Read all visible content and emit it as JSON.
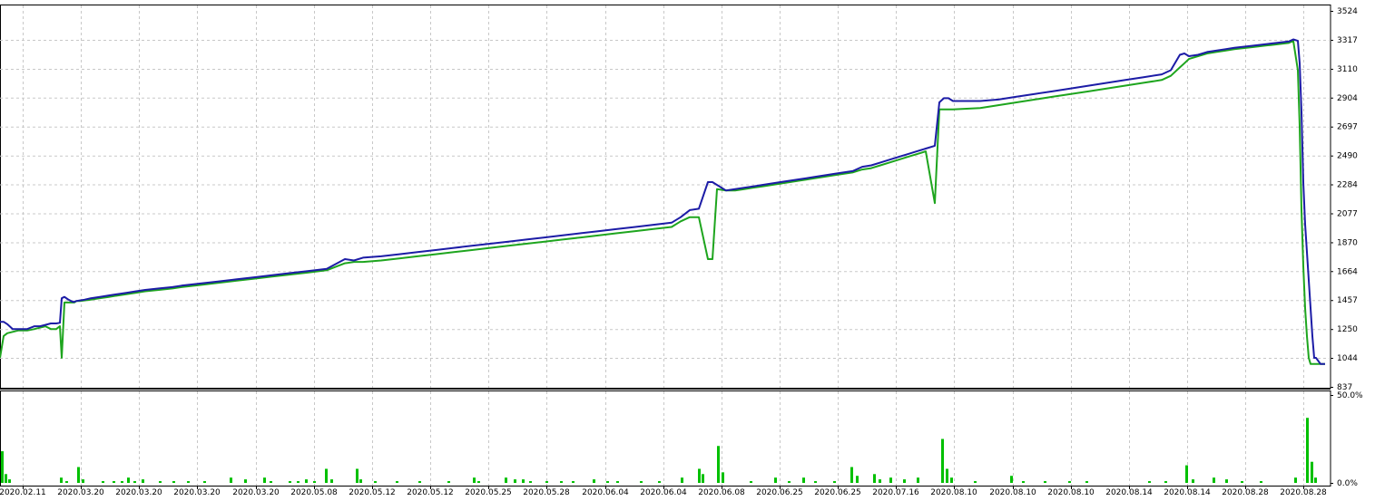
{
  "chart_data": [
    {
      "type": "line",
      "title": "",
      "ylim": [
        837,
        3524
      ],
      "y_ticks": [
        "3524",
        "3317",
        "3110",
        "2904",
        "2697",
        "2490",
        "2284",
        "2077",
        "1870",
        "1664",
        "1457",
        "1250",
        "1044",
        "837"
      ],
      "x_tick_labels": [
        "2020.02.11",
        "2020.03.20",
        "2020.03.20",
        "2020.03.20",
        "2020.03.20",
        "2020.05.08",
        "2020.05.12",
        "2020.05.12",
        "2020.05.25",
        "2020.05.28",
        "2020.06.04",
        "2020.06.04",
        "2020.06.08",
        "2020.06.25",
        "2020.06.25",
        "2020.07.16",
        "2020.08.10",
        "2020.08.10",
        "2020.08.10",
        "2020.08.14",
        "2020.08.14",
        "2020.08.28",
        "2020.08.28"
      ],
      "grid": true,
      "x": [
        0,
        4,
        8,
        14,
        20,
        30,
        38,
        44,
        50,
        56,
        62,
        66,
        68,
        71,
        75,
        80,
        82,
        84,
        88,
        93,
        100,
        110,
        120,
        130,
        140,
        150,
        160,
        175,
        190,
        200,
        220,
        240,
        260,
        280,
        300,
        320,
        340,
        360,
        380,
        390,
        400,
        420,
        440,
        460,
        480,
        500,
        520,
        540,
        560,
        580,
        600,
        620,
        640,
        660,
        680,
        700,
        720,
        740,
        750,
        760,
        770,
        780,
        785,
        790,
        800,
        810,
        820,
        830,
        840,
        860,
        880,
        900,
        920,
        940,
        950,
        960,
        970,
        980,
        990,
        1000,
        1010,
        1020,
        1030,
        1035,
        1040,
        1045,
        1050,
        1080,
        1100,
        1120,
        1140,
        1160,
        1180,
        1200,
        1220,
        1240,
        1260,
        1280,
        1290,
        1300,
        1305,
        1310,
        1320,
        1330,
        1340,
        1350,
        1360,
        1380,
        1400,
        1420,
        1425,
        1430,
        1432,
        1434,
        1436,
        1438,
        1440,
        1442,
        1444,
        1446,
        1448,
        1450,
        1455,
        1460
      ],
      "series": [
        {
          "color": "#1c1ca6",
          "values": [
            1302,
            1302,
            1285,
            1250,
            1250,
            1250,
            1270,
            1270,
            1280,
            1290,
            1290,
            1295,
            1470,
            1480,
            1462,
            1445,
            1445,
            1450,
            1455,
            1460,
            1470,
            1480,
            1490,
            1500,
            1510,
            1520,
            1530,
            1540,
            1550,
            1560,
            1575,
            1590,
            1605,
            1620,
            1635,
            1650,
            1665,
            1680,
            1750,
            1740,
            1760,
            1770,
            1785,
            1800,
            1815,
            1830,
            1845,
            1860,
            1875,
            1890,
            1905,
            1920,
            1935,
            1950,
            1965,
            1980,
            1995,
            2010,
            2050,
            2100,
            2110,
            2300,
            2300,
            2280,
            2240,
            2250,
            2260,
            2270,
            2280,
            2300,
            2320,
            2340,
            2360,
            2380,
            2410,
            2420,
            2440,
            2460,
            2480,
            2500,
            2520,
            2540,
            2560,
            2870,
            2900,
            2900,
            2880,
            2880,
            2890,
            2910,
            2930,
            2950,
            2970,
            2990,
            3010,
            3030,
            3050,
            3070,
            3100,
            3210,
            3220,
            3200,
            3210,
            3230,
            3240,
            3250,
            3260,
            3275,
            3290,
            3305,
            3320,
            3310,
            3150,
            2800,
            2300,
            2000,
            1800,
            1600,
            1400,
            1200,
            1044,
            1044,
            1000,
            1000
          ]
        },
        {
          "color": "#1ea51e",
          "values": [
            1044,
            1200,
            1220,
            1230,
            1240,
            1240,
            1250,
            1260,
            1270,
            1250,
            1250,
            1270,
            1044,
            1440,
            1440,
            1440,
            1440,
            1450,
            1450,
            1455,
            1460,
            1470,
            1480,
            1490,
            1500,
            1510,
            1520,
            1530,
            1540,
            1550,
            1565,
            1580,
            1595,
            1610,
            1625,
            1640,
            1655,
            1670,
            1720,
            1730,
            1730,
            1740,
            1755,
            1770,
            1785,
            1800,
            1815,
            1830,
            1845,
            1860,
            1875,
            1890,
            1905,
            1920,
            1935,
            1950,
            1965,
            1980,
            2020,
            2050,
            2050,
            1750,
            1750,
            2250,
            2240,
            2240,
            2250,
            2260,
            2270,
            2290,
            2310,
            2330,
            2350,
            2370,
            2390,
            2400,
            2420,
            2440,
            2460,
            2480,
            2500,
            2520,
            2150,
            2820,
            2820,
            2820,
            2820,
            2830,
            2850,
            2870,
            2890,
            2910,
            2930,
            2950,
            2970,
            2990,
            3010,
            3030,
            3060,
            3120,
            3150,
            3180,
            3200,
            3220,
            3230,
            3240,
            3250,
            3265,
            3280,
            3295,
            3310,
            3100,
            2700,
            2100,
            1700,
            1400,
            1200,
            1044,
            1000,
            1000,
            1000,
            1000,
            1000,
            1000
          ]
        }
      ]
    },
    {
      "type": "bar",
      "ylim": [
        0,
        50
      ],
      "y_ticks": [
        "50.0%",
        "0.0%"
      ],
      "color": "#00c000",
      "bars": [
        [
          1,
          18
        ],
        [
          5,
          5
        ],
        [
          9,
          2
        ],
        [
          66,
          3
        ],
        [
          72,
          1
        ],
        [
          85,
          9
        ],
        [
          90,
          2
        ],
        [
          112,
          1
        ],
        [
          124,
          1
        ],
        [
          133,
          1
        ],
        [
          140,
          3
        ],
        [
          147,
          1
        ],
        [
          156,
          2
        ],
        [
          175,
          1
        ],
        [
          190,
          1
        ],
        [
          206,
          1
        ],
        [
          224,
          1
        ],
        [
          253,
          3
        ],
        [
          269,
          2
        ],
        [
          290,
          3
        ],
        [
          297,
          1
        ],
        [
          318,
          1
        ],
        [
          327,
          1
        ],
        [
          336,
          2
        ],
        [
          345,
          1
        ],
        [
          358,
          8
        ],
        [
          364,
          2
        ],
        [
          392,
          8
        ],
        [
          396,
          2
        ],
        [
          412,
          1
        ],
        [
          436,
          1
        ],
        [
          461,
          1
        ],
        [
          493,
          1
        ],
        [
          521,
          3
        ],
        [
          526,
          1
        ],
        [
          556,
          3
        ],
        [
          566,
          2
        ],
        [
          575,
          2
        ],
        [
          583,
          1
        ],
        [
          601,
          1
        ],
        [
          617,
          1
        ],
        [
          630,
          1
        ],
        [
          653,
          2
        ],
        [
          668,
          1
        ],
        [
          679,
          1
        ],
        [
          705,
          1
        ],
        [
          725,
          1
        ],
        [
          750,
          3
        ],
        [
          769,
          8
        ],
        [
          773,
          5
        ],
        [
          790,
          21
        ],
        [
          795,
          6
        ],
        [
          826,
          1
        ],
        [
          853,
          3
        ],
        [
          868,
          1
        ],
        [
          884,
          3
        ],
        [
          897,
          1
        ],
        [
          918,
          1
        ],
        [
          937,
          9
        ],
        [
          943,
          4
        ],
        [
          962,
          5
        ],
        [
          968,
          2
        ],
        [
          980,
          3
        ],
        [
          995,
          2
        ],
        [
          1010,
          3
        ],
        [
          1037,
          25
        ],
        [
          1042,
          8
        ],
        [
          1047,
          3
        ],
        [
          1073,
          1
        ],
        [
          1113,
          4
        ],
        [
          1126,
          1
        ],
        [
          1150,
          1
        ],
        [
          1177,
          1
        ],
        [
          1196,
          1
        ],
        [
          1265,
          1
        ],
        [
          1283,
          1
        ],
        [
          1306,
          10
        ],
        [
          1313,
          2
        ],
        [
          1336,
          3
        ],
        [
          1350,
          2
        ],
        [
          1367,
          1
        ],
        [
          1388,
          1
        ],
        [
          1426,
          3
        ],
        [
          1439,
          37
        ],
        [
          1444,
          12
        ],
        [
          1448,
          3
        ]
      ]
    }
  ]
}
